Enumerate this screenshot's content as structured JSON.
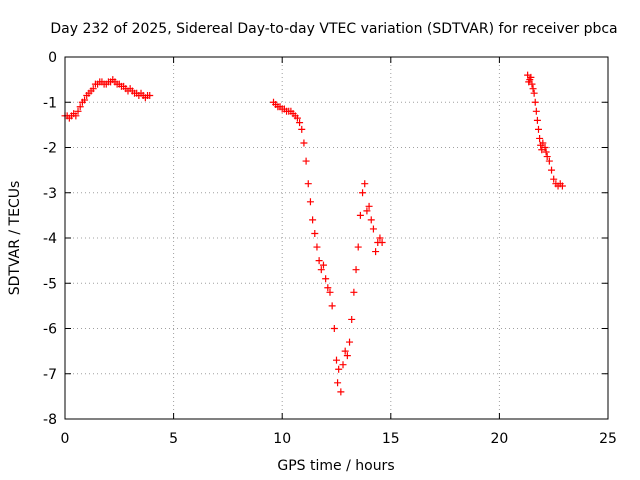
{
  "chart_data": {
    "type": "scatter",
    "title": "Day 232 of 2025, Sidereal Day-to-day VTEC variation (SDTVAR) for receiver pbca",
    "xlabel": "GPS time / hours",
    "ylabel": "SDTVAR / TECUs",
    "xlim": [
      0,
      25
    ],
    "ylim": [
      -8,
      0
    ],
    "xticks": [
      0,
      5,
      10,
      15,
      20,
      25
    ],
    "yticks": [
      0,
      -1,
      -2,
      -3,
      -4,
      -5,
      -6,
      -7,
      -8
    ],
    "x_tick_labels": [
      "0",
      "5",
      "10",
      "15",
      "20",
      "25"
    ],
    "y_tick_labels": [
      "0",
      "-1",
      "-2",
      "-3",
      "-4",
      "-5",
      "-6",
      "-7",
      "-8"
    ],
    "grid": true,
    "marker": "plus",
    "color": "#ff0000",
    "series": [
      {
        "name": "segment-1",
        "points": [
          [
            0.0,
            -1.3
          ],
          [
            0.1,
            -1.3
          ],
          [
            0.2,
            -1.35
          ],
          [
            0.3,
            -1.3
          ],
          [
            0.4,
            -1.25
          ],
          [
            0.5,
            -1.3
          ],
          [
            0.6,
            -1.2
          ],
          [
            0.7,
            -1.1
          ],
          [
            0.8,
            -1.0
          ],
          [
            0.9,
            -0.95
          ],
          [
            1.0,
            -0.85
          ],
          [
            1.1,
            -0.8
          ],
          [
            1.2,
            -0.75
          ],
          [
            1.3,
            -0.7
          ],
          [
            1.4,
            -0.6
          ],
          [
            1.5,
            -0.6
          ],
          [
            1.6,
            -0.55
          ],
          [
            1.7,
            -0.55
          ],
          [
            1.8,
            -0.6
          ],
          [
            1.9,
            -0.6
          ],
          [
            2.0,
            -0.55
          ],
          [
            2.1,
            -0.55
          ],
          [
            2.2,
            -0.5
          ],
          [
            2.3,
            -0.55
          ],
          [
            2.4,
            -0.6
          ],
          [
            2.5,
            -0.6
          ],
          [
            2.6,
            -0.65
          ],
          [
            2.7,
            -0.65
          ],
          [
            2.8,
            -0.7
          ],
          [
            2.9,
            -0.75
          ],
          [
            3.0,
            -0.7
          ],
          [
            3.1,
            -0.75
          ],
          [
            3.2,
            -0.8
          ],
          [
            3.3,
            -0.8
          ],
          [
            3.4,
            -0.85
          ],
          [
            3.5,
            -0.8
          ],
          [
            3.6,
            -0.85
          ],
          [
            3.7,
            -0.9
          ],
          [
            3.8,
            -0.85
          ],
          [
            3.9,
            -0.85
          ]
        ]
      },
      {
        "name": "segment-2",
        "points": [
          [
            9.6,
            -1.0
          ],
          [
            9.7,
            -1.05
          ],
          [
            9.8,
            -1.1
          ],
          [
            9.9,
            -1.1
          ],
          [
            10.0,
            -1.15
          ],
          [
            10.1,
            -1.15
          ],
          [
            10.2,
            -1.2
          ],
          [
            10.3,
            -1.2
          ],
          [
            10.4,
            -1.2
          ],
          [
            10.5,
            -1.25
          ],
          [
            10.6,
            -1.3
          ],
          [
            10.7,
            -1.35
          ],
          [
            10.8,
            -1.45
          ],
          [
            10.9,
            -1.6
          ],
          [
            11.0,
            -1.9
          ],
          [
            11.1,
            -2.3
          ],
          [
            11.2,
            -2.8
          ],
          [
            11.3,
            -3.2
          ],
          [
            11.4,
            -3.6
          ],
          [
            11.5,
            -3.9
          ],
          [
            11.6,
            -4.2
          ],
          [
            11.7,
            -4.5
          ],
          [
            11.8,
            -4.7
          ],
          [
            11.9,
            -4.6
          ],
          [
            12.0,
            -4.9
          ],
          [
            12.1,
            -5.1
          ],
          [
            12.2,
            -5.2
          ],
          [
            12.3,
            -5.5
          ],
          [
            12.4,
            -6.0
          ],
          [
            12.5,
            -6.7
          ],
          [
            12.55,
            -7.2
          ],
          [
            12.6,
            -6.9
          ],
          [
            12.7,
            -7.4
          ],
          [
            12.8,
            -6.8
          ],
          [
            12.9,
            -6.5
          ],
          [
            13.0,
            -6.6
          ],
          [
            13.1,
            -6.3
          ],
          [
            13.2,
            -5.8
          ],
          [
            13.3,
            -5.2
          ],
          [
            13.4,
            -4.7
          ],
          [
            13.5,
            -4.2
          ],
          [
            13.6,
            -3.5
          ],
          [
            13.7,
            -3.0
          ],
          [
            13.8,
            -2.8
          ],
          [
            13.9,
            -3.4
          ],
          [
            14.0,
            -3.3
          ],
          [
            14.1,
            -3.6
          ],
          [
            14.2,
            -3.8
          ],
          [
            14.3,
            -4.3
          ],
          [
            14.4,
            -4.1
          ],
          [
            14.5,
            -4.0
          ],
          [
            14.6,
            -4.1
          ]
        ]
      },
      {
        "name": "segment-3",
        "points": [
          [
            21.3,
            -0.4
          ],
          [
            21.35,
            -0.55
          ],
          [
            21.4,
            -0.5
          ],
          [
            21.45,
            -0.45
          ],
          [
            21.5,
            -0.6
          ],
          [
            21.55,
            -0.7
          ],
          [
            21.6,
            -0.8
          ],
          [
            21.65,
            -1.0
          ],
          [
            21.7,
            -1.2
          ],
          [
            21.75,
            -1.4
          ],
          [
            21.8,
            -1.6
          ],
          [
            21.85,
            -1.8
          ],
          [
            21.9,
            -1.95
          ],
          [
            21.95,
            -2.05
          ],
          [
            22.0,
            -1.9
          ],
          [
            22.1,
            -2.0
          ],
          [
            22.15,
            -2.1
          ],
          [
            22.2,
            -2.2
          ],
          [
            22.3,
            -2.3
          ],
          [
            22.4,
            -2.5
          ],
          [
            22.5,
            -2.7
          ],
          [
            22.6,
            -2.8
          ],
          [
            22.7,
            -2.85
          ],
          [
            22.8,
            -2.8
          ],
          [
            22.9,
            -2.85
          ]
        ]
      }
    ]
  }
}
